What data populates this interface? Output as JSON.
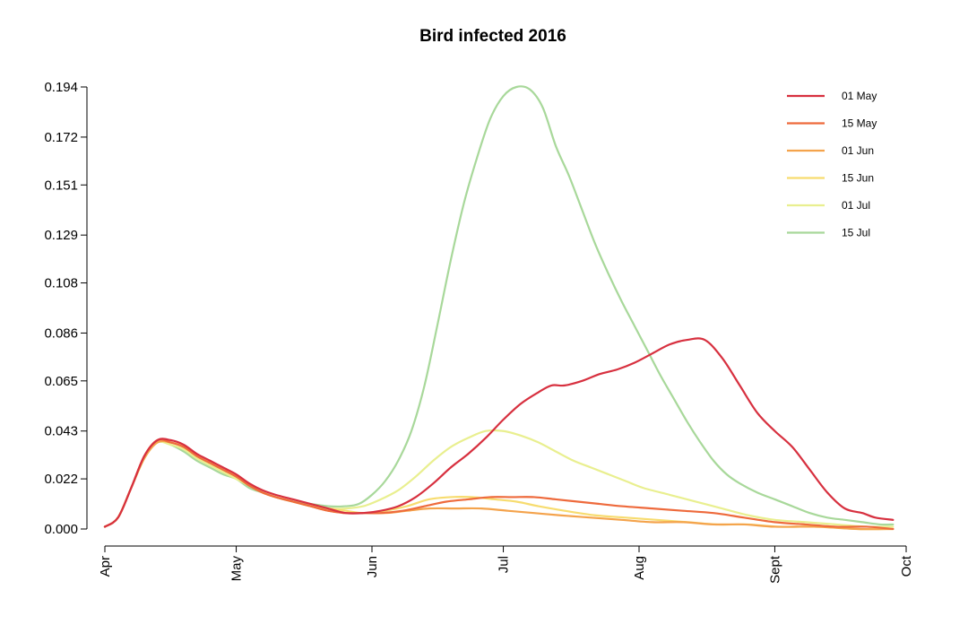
{
  "chart_data": {
    "type": "line",
    "title": "Bird infected 2016",
    "xlabel": "",
    "ylabel": "",
    "x_axis": {
      "tick_labels": [
        "Apr",
        "May",
        "Jun",
        "Jul",
        "Aug",
        "Sept",
        "Oct"
      ],
      "tick_dates": [
        "2016-04-01",
        "2016-05-01",
        "2016-06-01",
        "2016-07-01",
        "2016-08-01",
        "2016-09-01",
        "2016-10-01"
      ],
      "range": [
        "2016-04-01",
        "2016-10-01"
      ]
    },
    "y_axis": {
      "tick_labels": [
        "0.000",
        "0.022",
        "0.043",
        "0.065",
        "0.086",
        "0.108",
        "0.129",
        "0.151",
        "0.172",
        "0.194"
      ],
      "tick_values": [
        0.0,
        0.022,
        0.043,
        0.065,
        0.086,
        0.108,
        0.129,
        0.151,
        0.172,
        0.194
      ],
      "range": [
        0.0,
        0.194
      ]
    },
    "grid": false,
    "legend_position": "top-right",
    "series": [
      {
        "name": "01 May",
        "color": "#d7303f",
        "points": [
          [
            "2016-04-01",
            0.001
          ],
          [
            "2016-04-04",
            0.005
          ],
          [
            "2016-04-07",
            0.018
          ],
          [
            "2016-04-10",
            0.032
          ],
          [
            "2016-04-13",
            0.039
          ],
          [
            "2016-04-16",
            0.039
          ],
          [
            "2016-04-19",
            0.037
          ],
          [
            "2016-04-22",
            0.033
          ],
          [
            "2016-04-25",
            0.03
          ],
          [
            "2016-04-28",
            0.027
          ],
          [
            "2016-05-01",
            0.024
          ],
          [
            "2016-05-04",
            0.02
          ],
          [
            "2016-05-07",
            0.017
          ],
          [
            "2016-05-10",
            0.015
          ],
          [
            "2016-05-14",
            0.013
          ],
          [
            "2016-05-18",
            0.011
          ],
          [
            "2016-05-22",
            0.009
          ],
          [
            "2016-05-26",
            0.007
          ],
          [
            "2016-05-30",
            0.007
          ],
          [
            "2016-06-03",
            0.008
          ],
          [
            "2016-06-07",
            0.01
          ],
          [
            "2016-06-11",
            0.014
          ],
          [
            "2016-06-15",
            0.02
          ],
          [
            "2016-06-19",
            0.027
          ],
          [
            "2016-06-23",
            0.033
          ],
          [
            "2016-06-27",
            0.04
          ],
          [
            "2016-07-01",
            0.048
          ],
          [
            "2016-07-05",
            0.055
          ],
          [
            "2016-07-09",
            0.06
          ],
          [
            "2016-07-12",
            0.063
          ],
          [
            "2016-07-15",
            0.063
          ],
          [
            "2016-07-19",
            0.065
          ],
          [
            "2016-07-23",
            0.068
          ],
          [
            "2016-07-27",
            0.07
          ],
          [
            "2016-07-31",
            0.073
          ],
          [
            "2016-08-04",
            0.077
          ],
          [
            "2016-08-08",
            0.081
          ],
          [
            "2016-08-12",
            0.083
          ],
          [
            "2016-08-16",
            0.083
          ],
          [
            "2016-08-20",
            0.075
          ],
          [
            "2016-08-24",
            0.063
          ],
          [
            "2016-08-28",
            0.051
          ],
          [
            "2016-09-01",
            0.043
          ],
          [
            "2016-09-05",
            0.036
          ],
          [
            "2016-09-09",
            0.026
          ],
          [
            "2016-09-13",
            0.016
          ],
          [
            "2016-09-17",
            0.009
          ],
          [
            "2016-09-21",
            0.007
          ],
          [
            "2016-09-24",
            0.005
          ],
          [
            "2016-09-28",
            0.004
          ]
        ]
      },
      {
        "name": "15 May",
        "color": "#ee6a3c",
        "points": [
          [
            "2016-04-01",
            0.001
          ],
          [
            "2016-04-04",
            0.005
          ],
          [
            "2016-04-07",
            0.018
          ],
          [
            "2016-04-10",
            0.032
          ],
          [
            "2016-04-13",
            0.039
          ],
          [
            "2016-04-16",
            0.038
          ],
          [
            "2016-04-19",
            0.036
          ],
          [
            "2016-04-22",
            0.032
          ],
          [
            "2016-04-25",
            0.029
          ],
          [
            "2016-04-28",
            0.026
          ],
          [
            "2016-05-01",
            0.023
          ],
          [
            "2016-05-04",
            0.019
          ],
          [
            "2016-05-07",
            0.016
          ],
          [
            "2016-05-10",
            0.014
          ],
          [
            "2016-05-14",
            0.012
          ],
          [
            "2016-05-18",
            0.01
          ],
          [
            "2016-05-22",
            0.008
          ],
          [
            "2016-05-26",
            0.007
          ],
          [
            "2016-05-30",
            0.007
          ],
          [
            "2016-06-03",
            0.007
          ],
          [
            "2016-06-08",
            0.008
          ],
          [
            "2016-06-13",
            0.01
          ],
          [
            "2016-06-18",
            0.012
          ],
          [
            "2016-06-23",
            0.013
          ],
          [
            "2016-06-28",
            0.014
          ],
          [
            "2016-07-03",
            0.014
          ],
          [
            "2016-07-08",
            0.014
          ],
          [
            "2016-07-13",
            0.013
          ],
          [
            "2016-07-18",
            0.012
          ],
          [
            "2016-07-23",
            0.011
          ],
          [
            "2016-07-28",
            0.01
          ],
          [
            "2016-08-04",
            0.009
          ],
          [
            "2016-08-11",
            0.008
          ],
          [
            "2016-08-18",
            0.007
          ],
          [
            "2016-08-25",
            0.005
          ],
          [
            "2016-09-01",
            0.003
          ],
          [
            "2016-09-08",
            0.002
          ],
          [
            "2016-09-15",
            0.001
          ],
          [
            "2016-09-22",
            0.001
          ],
          [
            "2016-09-28",
            0.0
          ]
        ]
      },
      {
        "name": "01 Jun",
        "color": "#f4a34c",
        "points": [
          [
            "2016-04-01",
            0.001
          ],
          [
            "2016-04-04",
            0.005
          ],
          [
            "2016-04-07",
            0.018
          ],
          [
            "2016-04-10",
            0.031
          ],
          [
            "2016-04-13",
            0.038
          ],
          [
            "2016-04-16",
            0.038
          ],
          [
            "2016-04-19",
            0.036
          ],
          [
            "2016-04-22",
            0.032
          ],
          [
            "2016-04-25",
            0.029
          ],
          [
            "2016-04-28",
            0.026
          ],
          [
            "2016-05-01",
            0.023
          ],
          [
            "2016-05-04",
            0.019
          ],
          [
            "2016-05-07",
            0.016
          ],
          [
            "2016-05-10",
            0.014
          ],
          [
            "2016-05-14",
            0.012
          ],
          [
            "2016-05-18",
            0.01
          ],
          [
            "2016-05-22",
            0.008
          ],
          [
            "2016-05-26",
            0.007
          ],
          [
            "2016-05-30",
            0.007
          ],
          [
            "2016-06-04",
            0.007
          ],
          [
            "2016-06-09",
            0.008
          ],
          [
            "2016-06-14",
            0.009
          ],
          [
            "2016-06-20",
            0.009
          ],
          [
            "2016-06-26",
            0.009
          ],
          [
            "2016-07-02",
            0.008
          ],
          [
            "2016-07-08",
            0.007
          ],
          [
            "2016-07-14",
            0.006
          ],
          [
            "2016-07-21",
            0.005
          ],
          [
            "2016-07-28",
            0.004
          ],
          [
            "2016-08-04",
            0.003
          ],
          [
            "2016-08-11",
            0.003
          ],
          [
            "2016-08-18",
            0.002
          ],
          [
            "2016-08-25",
            0.002
          ],
          [
            "2016-09-01",
            0.001
          ],
          [
            "2016-09-10",
            0.001
          ],
          [
            "2016-09-20",
            0.0
          ],
          [
            "2016-09-28",
            0.0
          ]
        ]
      },
      {
        "name": "15 Jun",
        "color": "#f7dc6f",
        "points": [
          [
            "2016-04-01",
            0.001
          ],
          [
            "2016-04-04",
            0.005
          ],
          [
            "2016-04-07",
            0.018
          ],
          [
            "2016-04-10",
            0.031
          ],
          [
            "2016-04-13",
            0.038
          ],
          [
            "2016-04-16",
            0.038
          ],
          [
            "2016-04-19",
            0.036
          ],
          [
            "2016-04-22",
            0.032
          ],
          [
            "2016-04-25",
            0.029
          ],
          [
            "2016-04-28",
            0.026
          ],
          [
            "2016-05-01",
            0.023
          ],
          [
            "2016-05-04",
            0.019
          ],
          [
            "2016-05-07",
            0.016
          ],
          [
            "2016-05-10",
            0.014
          ],
          [
            "2016-05-14",
            0.012
          ],
          [
            "2016-05-18",
            0.01
          ],
          [
            "2016-05-22",
            0.009
          ],
          [
            "2016-05-26",
            0.008
          ],
          [
            "2016-05-30",
            0.007
          ],
          [
            "2016-06-04",
            0.008
          ],
          [
            "2016-06-09",
            0.01
          ],
          [
            "2016-06-14",
            0.013
          ],
          [
            "2016-06-19",
            0.014
          ],
          [
            "2016-06-24",
            0.014
          ],
          [
            "2016-06-29",
            0.013
          ],
          [
            "2016-07-04",
            0.012
          ],
          [
            "2016-07-09",
            0.01
          ],
          [
            "2016-07-15",
            0.008
          ],
          [
            "2016-07-22",
            0.006
          ],
          [
            "2016-07-29",
            0.005
          ],
          [
            "2016-08-05",
            0.004
          ],
          [
            "2016-08-12",
            0.003
          ],
          [
            "2016-08-19",
            0.002
          ],
          [
            "2016-08-26",
            0.002
          ],
          [
            "2016-09-02",
            0.001
          ],
          [
            "2016-09-12",
            0.001
          ],
          [
            "2016-09-20",
            0.0
          ],
          [
            "2016-09-28",
            0.0
          ]
        ]
      },
      {
        "name": "01 Jul",
        "color": "#e9ef8f",
        "points": [
          [
            "2016-04-01",
            0.001
          ],
          [
            "2016-04-04",
            0.005
          ],
          [
            "2016-04-07",
            0.018
          ],
          [
            "2016-04-10",
            0.031
          ],
          [
            "2016-04-13",
            0.038
          ],
          [
            "2016-04-16",
            0.037
          ],
          [
            "2016-04-19",
            0.035
          ],
          [
            "2016-04-22",
            0.031
          ],
          [
            "2016-04-25",
            0.028
          ],
          [
            "2016-04-28",
            0.025
          ],
          [
            "2016-05-01",
            0.022
          ],
          [
            "2016-05-04",
            0.019
          ],
          [
            "2016-05-07",
            0.016
          ],
          [
            "2016-05-10",
            0.014
          ],
          [
            "2016-05-14",
            0.012
          ],
          [
            "2016-05-18",
            0.01
          ],
          [
            "2016-05-22",
            0.009
          ],
          [
            "2016-05-26",
            0.009
          ],
          [
            "2016-05-30",
            0.01
          ],
          [
            "2016-06-03",
            0.013
          ],
          [
            "2016-06-07",
            0.017
          ],
          [
            "2016-06-11",
            0.023
          ],
          [
            "2016-06-15",
            0.03
          ],
          [
            "2016-06-19",
            0.036
          ],
          [
            "2016-06-23",
            0.04
          ],
          [
            "2016-06-27",
            0.043
          ],
          [
            "2016-07-01",
            0.043
          ],
          [
            "2016-07-05",
            0.041
          ],
          [
            "2016-07-09",
            0.038
          ],
          [
            "2016-07-13",
            0.034
          ],
          [
            "2016-07-17",
            0.03
          ],
          [
            "2016-07-21",
            0.027
          ],
          [
            "2016-07-25",
            0.024
          ],
          [
            "2016-07-29",
            0.021
          ],
          [
            "2016-08-02",
            0.018
          ],
          [
            "2016-08-08",
            0.015
          ],
          [
            "2016-08-14",
            0.012
          ],
          [
            "2016-08-20",
            0.009
          ],
          [
            "2016-08-26",
            0.006
          ],
          [
            "2016-09-01",
            0.004
          ],
          [
            "2016-09-08",
            0.003
          ],
          [
            "2016-09-15",
            0.002
          ],
          [
            "2016-09-22",
            0.001
          ],
          [
            "2016-09-28",
            0.001
          ]
        ]
      },
      {
        "name": "15 Jul",
        "color": "#a8d89a",
        "points": [
          [
            "2016-04-01",
            0.001
          ],
          [
            "2016-04-04",
            0.005
          ],
          [
            "2016-04-07",
            0.018
          ],
          [
            "2016-04-10",
            0.031
          ],
          [
            "2016-04-13",
            0.038
          ],
          [
            "2016-04-16",
            0.037
          ],
          [
            "2016-04-19",
            0.034
          ],
          [
            "2016-04-22",
            0.03
          ],
          [
            "2016-04-25",
            0.027
          ],
          [
            "2016-04-28",
            0.024
          ],
          [
            "2016-05-01",
            0.022
          ],
          [
            "2016-05-04",
            0.018
          ],
          [
            "2016-05-07",
            0.016
          ],
          [
            "2016-05-10",
            0.014
          ],
          [
            "2016-05-14",
            0.012
          ],
          [
            "2016-05-18",
            0.011
          ],
          [
            "2016-05-22",
            0.01
          ],
          [
            "2016-05-26",
            0.01
          ],
          [
            "2016-05-29",
            0.011
          ],
          [
            "2016-06-01",
            0.015
          ],
          [
            "2016-06-04",
            0.021
          ],
          [
            "2016-06-07",
            0.03
          ],
          [
            "2016-06-10",
            0.043
          ],
          [
            "2016-06-13",
            0.063
          ],
          [
            "2016-06-16",
            0.09
          ],
          [
            "2016-06-19",
            0.118
          ],
          [
            "2016-06-22",
            0.143
          ],
          [
            "2016-06-25",
            0.163
          ],
          [
            "2016-06-28",
            0.18
          ],
          [
            "2016-07-01",
            0.19
          ],
          [
            "2016-07-04",
            0.194
          ],
          [
            "2016-07-07",
            0.193
          ],
          [
            "2016-07-10",
            0.185
          ],
          [
            "2016-07-13",
            0.168
          ],
          [
            "2016-07-16",
            0.155
          ],
          [
            "2016-07-19",
            0.14
          ],
          [
            "2016-07-22",
            0.125
          ],
          [
            "2016-07-25",
            0.112
          ],
          [
            "2016-07-28",
            0.1
          ],
          [
            "2016-07-31",
            0.089
          ],
          [
            "2016-08-03",
            0.078
          ],
          [
            "2016-08-06",
            0.067
          ],
          [
            "2016-08-09",
            0.057
          ],
          [
            "2016-08-12",
            0.047
          ],
          [
            "2016-08-15",
            0.038
          ],
          [
            "2016-08-18",
            0.03
          ],
          [
            "2016-08-21",
            0.024
          ],
          [
            "2016-08-24",
            0.02
          ],
          [
            "2016-08-28",
            0.016
          ],
          [
            "2016-09-01",
            0.013
          ],
          [
            "2016-09-05",
            0.01
          ],
          [
            "2016-09-09",
            0.007
          ],
          [
            "2016-09-13",
            0.005
          ],
          [
            "2016-09-17",
            0.004
          ],
          [
            "2016-09-21",
            0.003
          ],
          [
            "2016-09-25",
            0.002
          ],
          [
            "2016-09-28",
            0.002
          ]
        ]
      }
    ]
  }
}
